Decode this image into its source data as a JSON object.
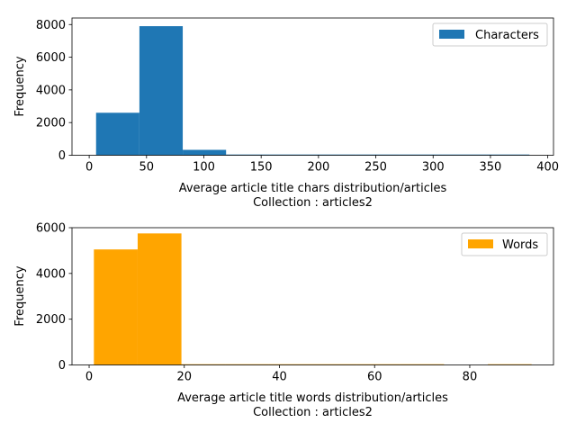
{
  "chart_data": [
    {
      "type": "bar",
      "subtype": "histogram",
      "series": [
        {
          "name": "Characters",
          "color": "#1f77b4",
          "bins": [
            {
              "x0": 6,
              "x1": 43.8,
              "value": 2600
            },
            {
              "x0": 43.8,
              "x1": 81.6,
              "value": 7900
            },
            {
              "x0": 81.6,
              "x1": 119.4,
              "value": 330
            },
            {
              "x0": 119.4,
              "x1": 157.2,
              "value": 3
            },
            {
              "x0": 157.2,
              "x1": 195,
              "value": 1
            },
            {
              "x0": 195,
              "x1": 232.8,
              "value": 1
            },
            {
              "x0": 232.8,
              "x1": 270.6,
              "value": 1
            },
            {
              "x0": 270.6,
              "x1": 308.4,
              "value": 1
            },
            {
              "x0": 308.4,
              "x1": 346.2,
              "value": 1
            },
            {
              "x0": 346.2,
              "x1": 384,
              "value": 1
            }
          ]
        }
      ],
      "xlabel": "Average article title chars distribution/articles",
      "xlabel2": "Collection : articles2",
      "ylabel": "Frequency",
      "xlim": [
        -15,
        405
      ],
      "ylim": [
        0,
        8400
      ],
      "xticks": [
        "0",
        "50",
        "100",
        "150",
        "200",
        "250",
        "300",
        "350",
        "400"
      ],
      "xtick_values": [
        0,
        50,
        100,
        150,
        200,
        250,
        300,
        350,
        400
      ],
      "yticks": [
        "0",
        "2000",
        "4000",
        "6000",
        "8000"
      ],
      "ytick_values": [
        0,
        2000,
        4000,
        6000,
        8000
      ],
      "grid": false,
      "legend": "upper-right"
    },
    {
      "type": "bar",
      "subtype": "histogram",
      "series": [
        {
          "name": "Words",
          "color": "#ffa500",
          "bins": [
            {
              "x0": 1,
              "x1": 10.2,
              "value": 5050
            },
            {
              "x0": 10.2,
              "x1": 19.4,
              "value": 5750
            },
            {
              "x0": 19.4,
              "x1": 28.6,
              "value": 20
            },
            {
              "x0": 28.6,
              "x1": 37.8,
              "value": 5
            },
            {
              "x0": 37.8,
              "x1": 47,
              "value": 3
            },
            {
              "x0": 47,
              "x1": 56.2,
              "value": 2
            },
            {
              "x0": 56.2,
              "x1": 65.4,
              "value": 2
            },
            {
              "x0": 65.4,
              "x1": 74.6,
              "value": 1
            },
            {
              "x0": 74.6,
              "x1": 83.8,
              "value": 0
            },
            {
              "x0": 83.8,
              "x1": 93,
              "value": 1
            }
          ]
        }
      ],
      "xlabel": "Average article title words distribution/articles",
      "xlabel2": "Collection : articles2",
      "ylabel": "Frequency",
      "xlim": [
        -3.6,
        97.6
      ],
      "ylim": [
        0,
        6000
      ],
      "xticks": [
        "0",
        "20",
        "40",
        "60",
        "80"
      ],
      "xtick_values": [
        0,
        20,
        40,
        60,
        80
      ],
      "yticks": [
        "0",
        "2000",
        "4000",
        "6000"
      ],
      "ytick_values": [
        0,
        2000,
        4000,
        6000
      ],
      "grid": false,
      "legend": "upper-right"
    }
  ]
}
